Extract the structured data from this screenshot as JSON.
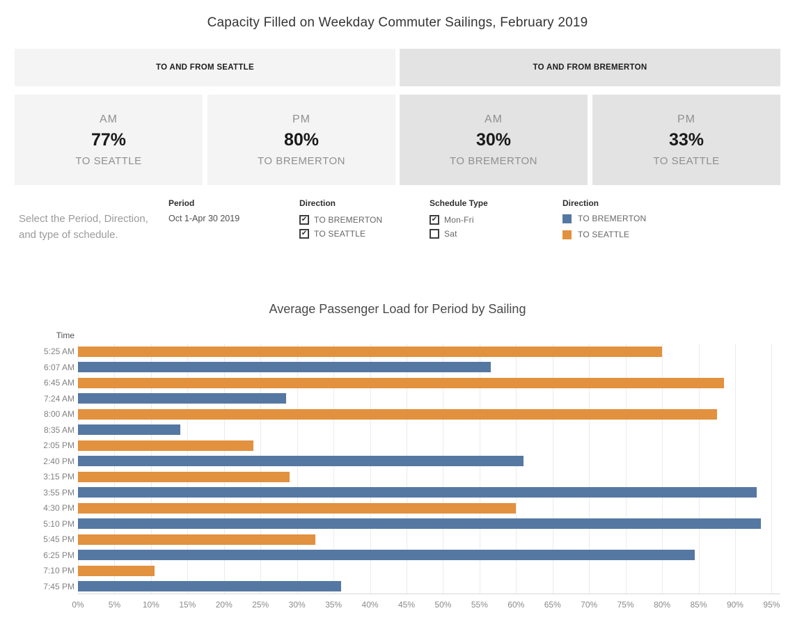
{
  "title": "Capacity Filled on Weekday Commuter Sailings, February 2019",
  "sections": [
    {
      "header": "TO AND FROM SEATTLE",
      "bg": "#f4f4f4",
      "cards": [
        {
          "period": "AM",
          "value": "77%",
          "direction": "TO SEATTLE"
        },
        {
          "period": "PM",
          "value": "80%",
          "direction": "TO BREMERTON"
        }
      ]
    },
    {
      "header": "TO AND FROM BREMERTON",
      "bg": "#e3e3e3",
      "cards": [
        {
          "period": "AM",
          "value": "30%",
          "direction": "TO BREMERTON"
        },
        {
          "period": "PM",
          "value": "33%",
          "direction": "TO SEATTLE"
        }
      ]
    }
  ],
  "filters": {
    "instruction": "Select the Period, Direction, and type of schedule.",
    "period": {
      "label": "Period",
      "value": "Oct 1-Apr 30 2019"
    },
    "direction_filter": {
      "label": "Direction",
      "options": [
        {
          "label": "TO BREMERTON",
          "checked": true,
          "glyph": "✔"
        },
        {
          "label": "TO SEATTLE",
          "checked": true,
          "glyph": "✔"
        }
      ]
    },
    "schedule_type": {
      "label": "Schedule Type",
      "options": [
        {
          "label": "Mon-Fri",
          "checked": true,
          "glyph": "✔"
        },
        {
          "label": "Sat",
          "checked": false,
          "glyph": ""
        }
      ]
    },
    "legend": {
      "label": "Direction",
      "items": [
        {
          "label": "TO BREMERTON",
          "color": "#5578a2"
        },
        {
          "label": "TO SEATTLE",
          "color": "#e2913e"
        }
      ]
    }
  },
  "chart_data": {
    "type": "bar",
    "orientation": "horizontal",
    "title": "Average Passenger Load for Period by Sailing",
    "ylabel": "Time",
    "xlabel": "",
    "xlim": [
      0,
      96.2
    ],
    "grid": true,
    "xticks": [
      "0%",
      "5%",
      "10%",
      "15%",
      "20%",
      "25%",
      "30%",
      "35%",
      "40%",
      "45%",
      "50%",
      "55%",
      "60%",
      "65%",
      "70%",
      "75%",
      "80%",
      "85%",
      "90%",
      "95%"
    ],
    "colors": {
      "TO BREMERTON": "#5578a2",
      "TO SEATTLE": "#e2913e"
    },
    "bars": [
      {
        "time": "5:25 AM",
        "value": 80,
        "direction": "TO SEATTLE"
      },
      {
        "time": "6:07 AM",
        "value": 56.5,
        "direction": "TO BREMERTON"
      },
      {
        "time": "6:45 AM",
        "value": 88.5,
        "direction": "TO SEATTLE"
      },
      {
        "time": "7:24 AM",
        "value": 28.5,
        "direction": "TO BREMERTON"
      },
      {
        "time": "8:00 AM",
        "value": 87.5,
        "direction": "TO SEATTLE"
      },
      {
        "time": "8:35 AM",
        "value": 14,
        "direction": "TO BREMERTON"
      },
      {
        "time": "2:05 PM",
        "value": 24,
        "direction": "TO SEATTLE"
      },
      {
        "time": "2:40 PM",
        "value": 61,
        "direction": "TO BREMERTON"
      },
      {
        "time": "3:15 PM",
        "value": 29,
        "direction": "TO SEATTLE"
      },
      {
        "time": "3:55 PM",
        "value": 93,
        "direction": "TO BREMERTON"
      },
      {
        "time": "4:30 PM",
        "value": 60,
        "direction": "TO SEATTLE"
      },
      {
        "time": "5:10 PM",
        "value": 93.5,
        "direction": "TO BREMERTON"
      },
      {
        "time": "5:45 PM",
        "value": 32.5,
        "direction": "TO SEATTLE"
      },
      {
        "time": "6:25 PM",
        "value": 84.5,
        "direction": "TO BREMERTON"
      },
      {
        "time": "7:10 PM",
        "value": 10.5,
        "direction": "TO SEATTLE"
      },
      {
        "time": "7:45 PM",
        "value": 36,
        "direction": "TO BREMERTON"
      }
    ]
  }
}
